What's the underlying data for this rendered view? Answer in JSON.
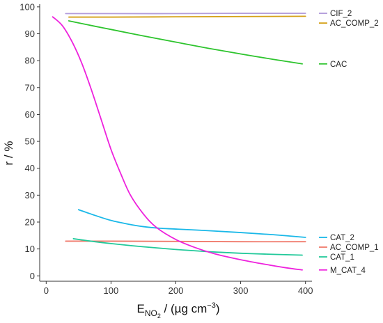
{
  "chart_data": {
    "type": "line",
    "title": "",
    "xlabel": {
      "main": "E",
      "sub": "NO",
      "subsub": "2",
      "units_pre": " / (µg cm",
      "units_sup": "−3",
      "units_post": ")"
    },
    "ylabel": "r / %",
    "xlim": [
      -10,
      410
    ],
    "ylim": [
      -2,
      101
    ],
    "x_ticks": [
      0,
      100,
      200,
      300,
      400
    ],
    "y_ticks": [
      0,
      10,
      20,
      30,
      40,
      50,
      60,
      70,
      80,
      90,
      100
    ],
    "grid": false,
    "legend": "right, labels placed at each series' end",
    "series": [
      {
        "name": "CIF_2",
        "color": "#b39ddb",
        "x": [
          30,
          100,
          200,
          300,
          400
        ],
        "y": [
          97.5,
          97.5,
          97.5,
          97.6,
          97.6
        ]
      },
      {
        "name": "AC_COMP_2",
        "color": "#d4a017",
        "x": [
          35,
          100,
          200,
          300,
          400
        ],
        "y": [
          96.2,
          96.2,
          96.3,
          96.4,
          96.5
        ]
      },
      {
        "name": "CAC",
        "color": "#2ec42e",
        "x": [
          35,
          75,
          100,
          150,
          200,
          250,
          300,
          350,
          395
        ],
        "y": [
          94.8,
          92.8,
          91.6,
          89.2,
          86.9,
          84.6,
          82.5,
          80.5,
          78.8
        ]
      },
      {
        "name": "CAT_2",
        "color": "#1ab8e8",
        "x": [
          50,
          75,
          100,
          125,
          150,
          175,
          200,
          250,
          300,
          350,
          400
        ],
        "y": [
          24.6,
          22.5,
          20.6,
          19.3,
          18.3,
          17.7,
          17.4,
          16.8,
          16.1,
          15.3,
          14.3
        ]
      },
      {
        "name": "AC_COMP_1",
        "color": "#f07a6c",
        "x": [
          30,
          100,
          200,
          300,
          400
        ],
        "y": [
          12.9,
          12.9,
          12.8,
          12.7,
          12.7
        ]
      },
      {
        "name": "CAT_1",
        "color": "#22c99a",
        "x": [
          42,
          75,
          100,
          150,
          200,
          250,
          300,
          350,
          395
        ],
        "y": [
          13.8,
          12.7,
          12.0,
          10.8,
          9.8,
          9.0,
          8.4,
          8.0,
          7.7
        ]
      },
      {
        "name": "M_CAT_4",
        "color": "#ee22dd",
        "x": [
          10,
          25,
          40,
          55,
          70,
          85,
          100,
          115,
          130,
          150,
          170,
          200,
          230,
          260,
          300,
          340,
          370,
          395
        ],
        "y": [
          96.3,
          93.0,
          87.0,
          79.0,
          69.0,
          58.0,
          47.0,
          38.0,
          30.0,
          23.0,
          18.0,
          13.5,
          10.5,
          8.2,
          6.0,
          4.2,
          3.0,
          2.2
        ]
      }
    ]
  }
}
